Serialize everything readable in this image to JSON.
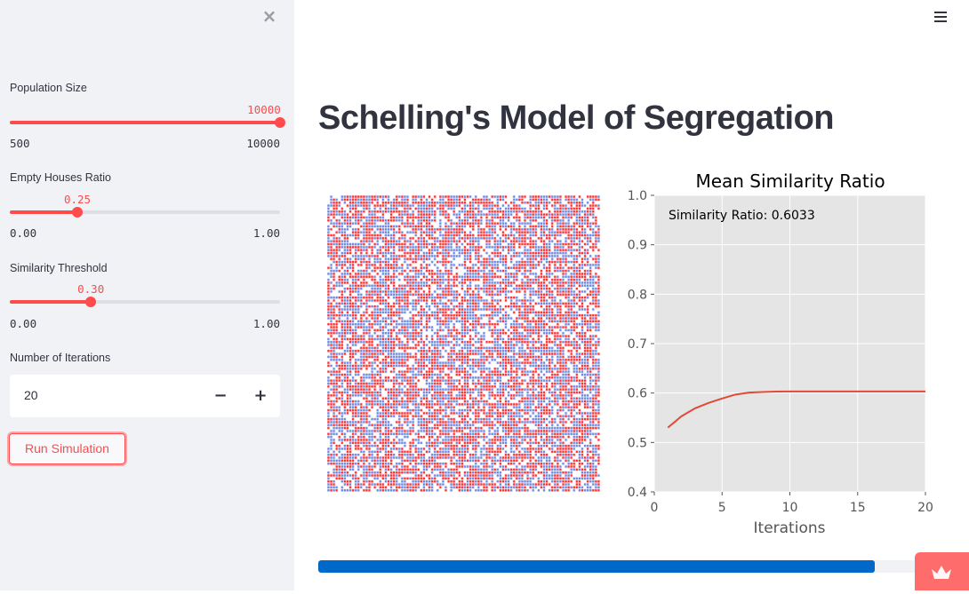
{
  "sidebar": {
    "close_icon": "×",
    "population": {
      "label": "Population Size",
      "value": "10000",
      "min": "500",
      "max": "10000",
      "fraction": 1.0
    },
    "empty_ratio": {
      "label": "Empty Houses Ratio",
      "value": "0.25",
      "min": "0.00",
      "max": "1.00",
      "fraction": 0.25
    },
    "similarity": {
      "label": "Similarity Threshold",
      "value": "0.30",
      "min": "0.00",
      "max": "1.00",
      "fraction": 0.3
    },
    "iterations": {
      "label": "Number of Iterations",
      "value": "20",
      "minus": "−",
      "plus": "+"
    },
    "run_button": "Run Simulation"
  },
  "header": {
    "menu_icon": "hamburger-menu"
  },
  "main": {
    "title": "Schelling's Model of Segregation",
    "grid": {
      "colors": {
        "group_a": "#ff0000",
        "group_b": "#4b6fd9"
      },
      "cols": 100,
      "rows": 100
    },
    "progress": {
      "percent": 92,
      "color": "#0068c9"
    }
  },
  "chart_data": {
    "type": "line",
    "title": "Mean Similarity Ratio",
    "annotation": "Similarity Ratio: 0.6033",
    "xlabel": "Iterations",
    "ylabel": "",
    "xlim": [
      0,
      20
    ],
    "ylim": [
      0.4,
      1.0
    ],
    "xticks": [
      "0",
      "5",
      "10",
      "15",
      "20"
    ],
    "yticks": [
      "0.4",
      "0.5",
      "0.6",
      "0.7",
      "0.8",
      "0.9",
      "1.0"
    ],
    "grid": true,
    "line_color": "#e24a33",
    "x": [
      1,
      2,
      3,
      4,
      5,
      6,
      7,
      8,
      9,
      10,
      11,
      12,
      13,
      14,
      15,
      16,
      17,
      18,
      19,
      20
    ],
    "values": [
      0.53,
      0.553,
      0.569,
      0.58,
      0.589,
      0.597,
      0.601,
      0.602,
      0.603,
      0.6033,
      0.6033,
      0.6033,
      0.6033,
      0.6033,
      0.6033,
      0.6033,
      0.6033,
      0.6033,
      0.6033,
      0.6033
    ]
  }
}
